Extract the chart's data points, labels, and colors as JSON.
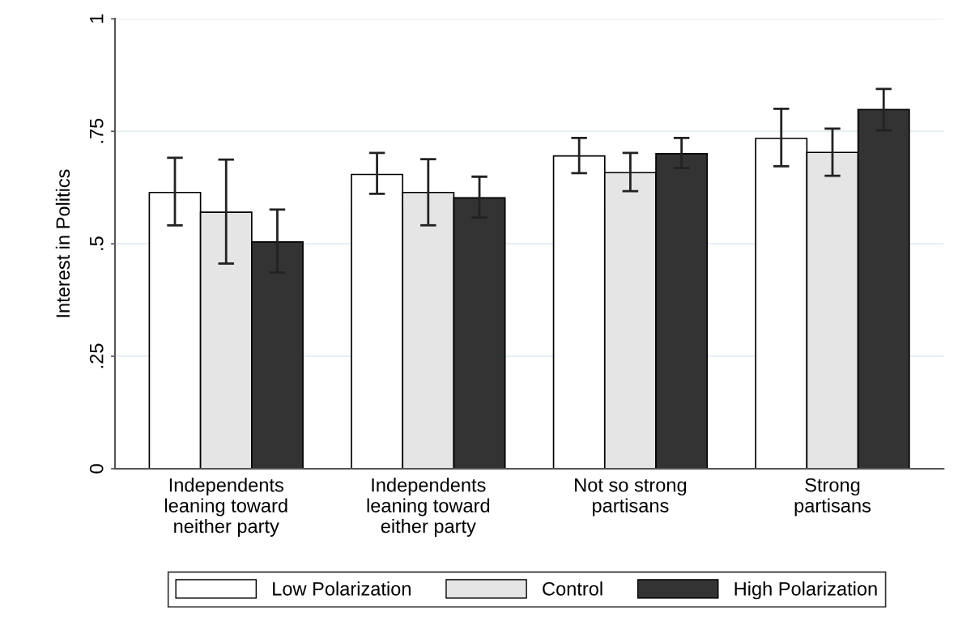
{
  "chart_data": {
    "type": "bar",
    "ylabel": "Interest in Politics",
    "categories": [
      "Independents\nleaning toward\nneither party",
      "Independents\nleaning toward\neither party",
      "Not so strong\npartisans",
      "Strong\npartisans"
    ],
    "series": [
      {
        "name": "Low Polarization",
        "color": "#ffffff",
        "values": [
          0.614,
          0.654,
          0.695,
          0.734
        ],
        "errors": [
          [
            0.541,
            0.691
          ],
          [
            0.611,
            0.702
          ],
          [
            0.657,
            0.735
          ],
          [
            0.672,
            0.8
          ]
        ]
      },
      {
        "name": "Control",
        "color": "#e5e5e5",
        "values": [
          0.57,
          0.614,
          0.658,
          0.703
        ],
        "errors": [
          [
            0.456,
            0.687
          ],
          [
            0.541,
            0.688
          ],
          [
            0.617,
            0.702
          ],
          [
            0.651,
            0.756
          ]
        ]
      },
      {
        "name": "High Polarization",
        "color": "#333333",
        "values": [
          0.504,
          0.602,
          0.7,
          0.798
        ],
        "errors": [
          [
            0.436,
            0.576
          ],
          [
            0.558,
            0.649
          ],
          [
            0.668,
            0.735
          ],
          [
            0.752,
            0.844
          ]
        ]
      }
    ],
    "ylim": [
      0,
      1
    ],
    "yticks": [
      {
        "value": 0,
        "label": "0"
      },
      {
        "value": 0.25,
        "label": ".25"
      },
      {
        "value": 0.5,
        "label": ".5"
      },
      {
        "value": 0.75,
        "label": ".75"
      },
      {
        "value": 1,
        "label": "1"
      }
    ],
    "grid": "y",
    "legend": "bottom"
  }
}
